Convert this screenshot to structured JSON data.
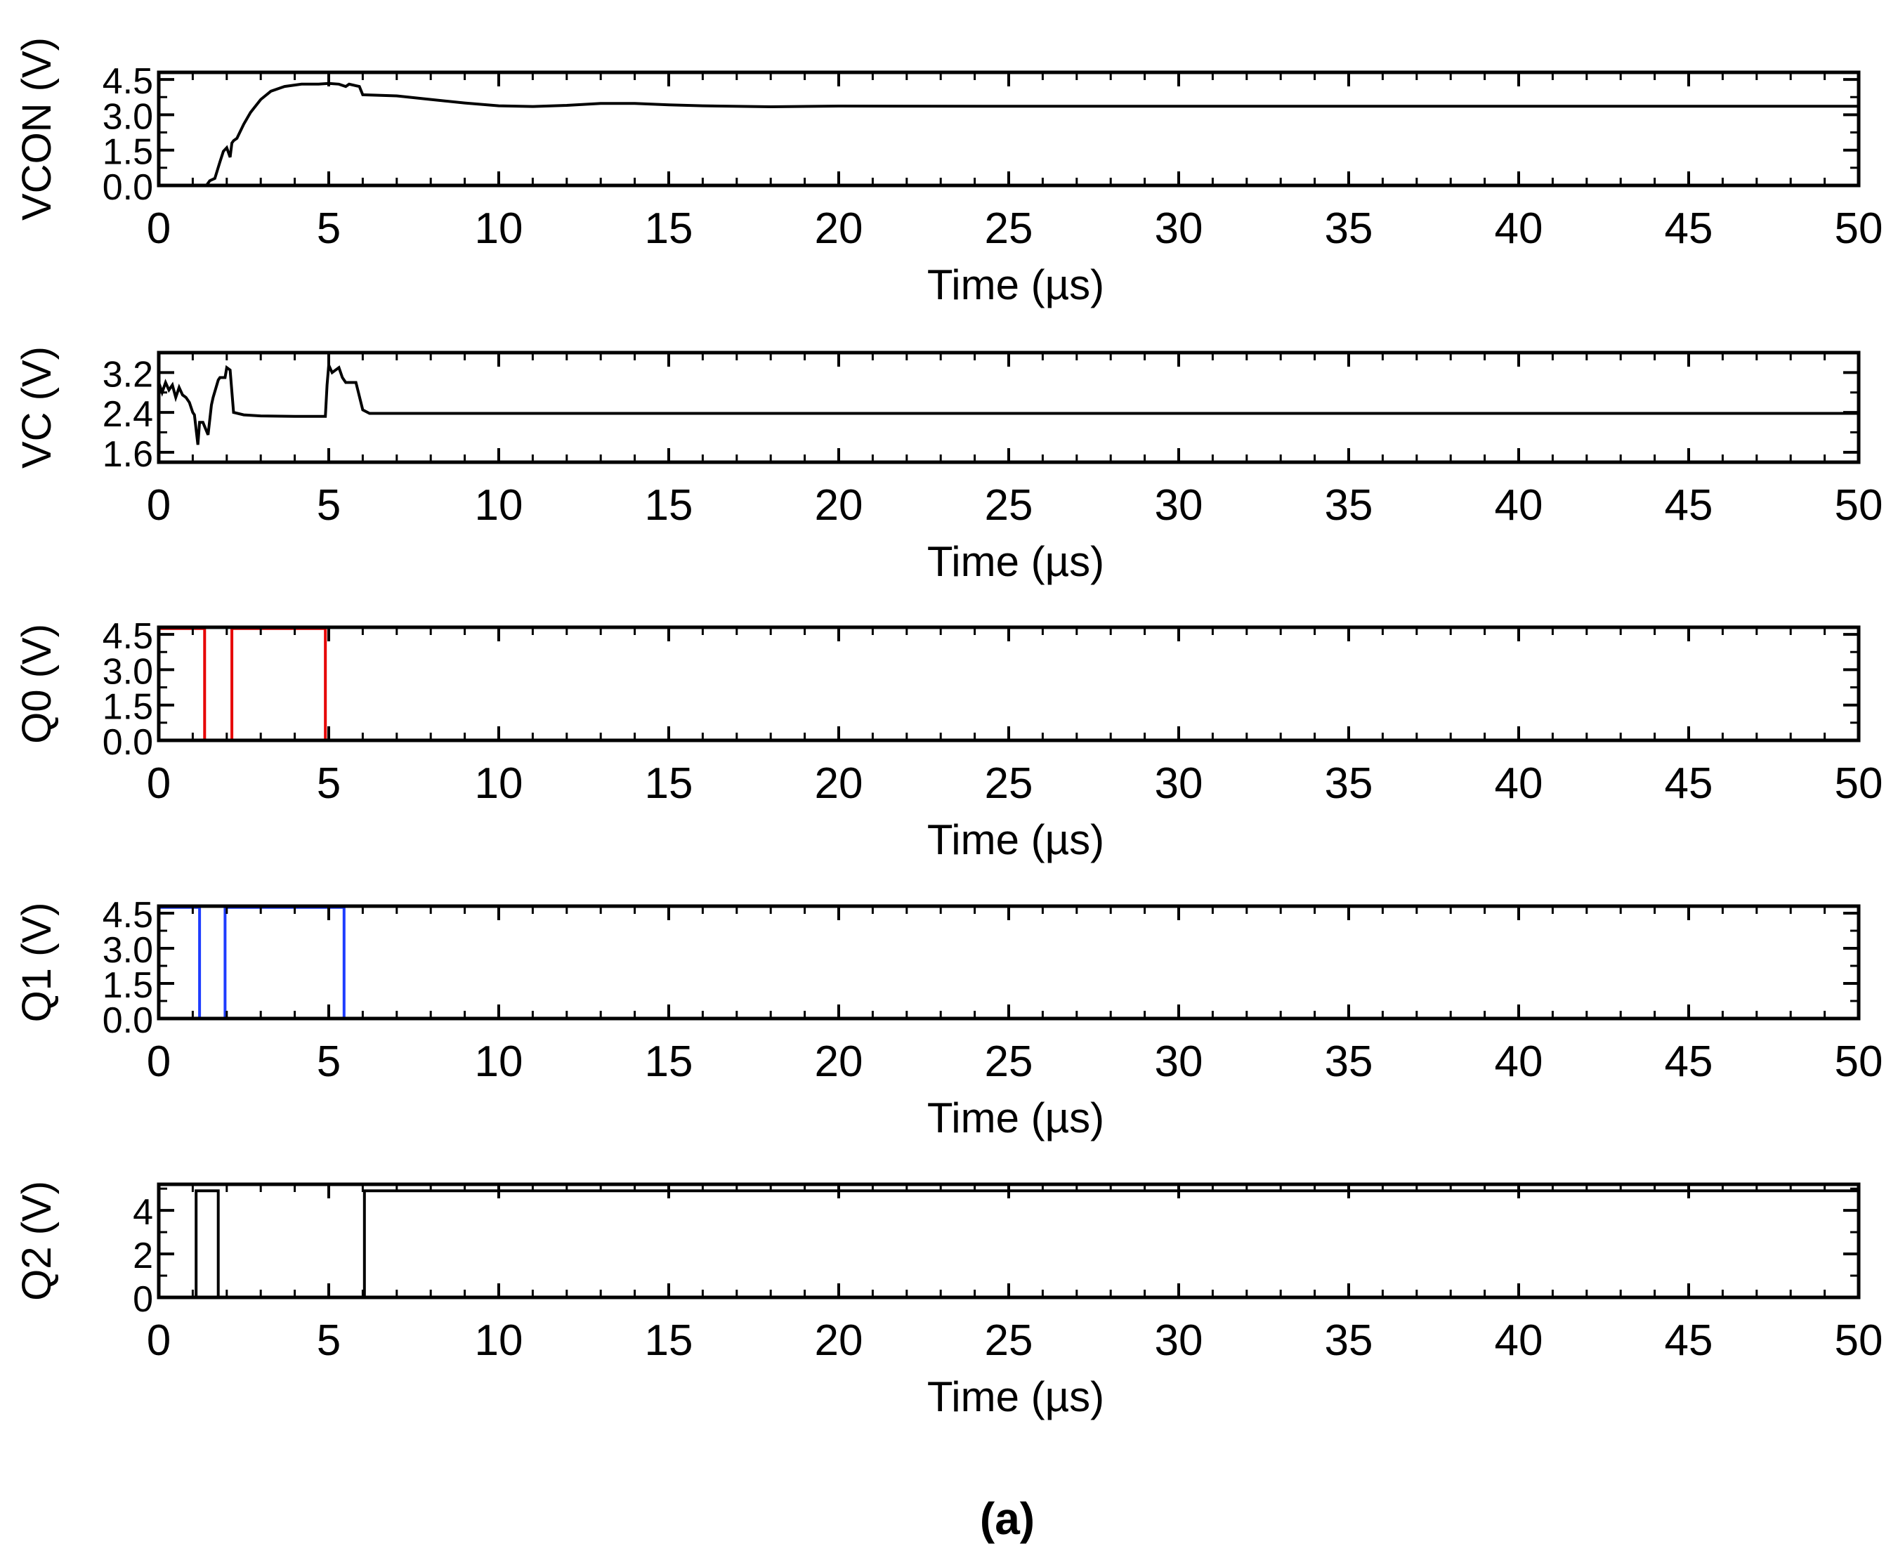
{
  "caption": "(a)",
  "chart_data": [
    {
      "type": "line",
      "ylabel": "VCON (V)",
      "xlabel": "Time (µs)",
      "xlim": [
        0,
        50
      ],
      "ylim": [
        0,
        4.8
      ],
      "x_ticks": [
        0,
        5,
        10,
        15,
        20,
        25,
        30,
        35,
        40,
        45,
        50
      ],
      "y_ticks": [
        "0.0",
        "1.5",
        "3.0",
        "4.5"
      ],
      "y_tick_values": [
        0,
        1.5,
        3.0,
        4.5
      ],
      "grid": false,
      "color": "#000000",
      "series": [
        {
          "x": [
            0,
            1.4,
            1.5,
            1.65,
            1.8,
            1.9,
            2.0,
            2.1,
            2.15,
            2.2,
            2.3,
            2.5,
            2.7,
            3.0,
            3.3,
            3.7,
            4.2,
            4.7,
            5.0,
            5.3,
            5.5,
            5.6,
            5.9,
            6.0,
            7,
            8,
            9,
            10,
            11,
            12,
            13,
            14,
            15,
            16,
            18,
            20,
            25,
            30,
            40,
            50
          ],
          "y": [
            0,
            0,
            0.2,
            0.3,
            1.0,
            1.45,
            1.6,
            1.2,
            1.8,
            1.9,
            2.0,
            2.6,
            3.1,
            3.65,
            4.0,
            4.2,
            4.3,
            4.3,
            4.33,
            4.3,
            4.2,
            4.3,
            4.2,
            3.85,
            3.8,
            3.65,
            3.5,
            3.38,
            3.35,
            3.4,
            3.48,
            3.48,
            3.42,
            3.38,
            3.34,
            3.37,
            3.36,
            3.36,
            3.36,
            3.36
          ]
        }
      ]
    },
    {
      "type": "line",
      "ylabel": "VC (V)",
      "xlabel": "Time (µs)",
      "xlim": [
        0,
        50
      ],
      "ylim": [
        1.4,
        3.6
      ],
      "x_ticks": [
        0,
        5,
        10,
        15,
        20,
        25,
        30,
        35,
        40,
        45,
        50
      ],
      "y_ticks": [
        "1.6",
        "2.4",
        "3.2"
      ],
      "y_tick_values": [
        1.6,
        2.4,
        3.2
      ],
      "grid": false,
      "color": "#000000",
      "series": [
        {
          "x": [
            0,
            0.1,
            0.2,
            0.3,
            0.4,
            0.5,
            0.6,
            0.7,
            0.8,
            0.9,
            1.0,
            1.05,
            1.15,
            1.2,
            1.3,
            1.45,
            1.55,
            1.6,
            1.75,
            1.8,
            1.95,
            2.0,
            2.1,
            2.2,
            2.5,
            3,
            4,
            4.9,
            4.95,
            5.0,
            5.1,
            5.3,
            5.4,
            5.5,
            5.7,
            5.8,
            6.0,
            6.2,
            10,
            20,
            50
          ],
          "y": [
            3.0,
            2.8,
            3.0,
            2.85,
            2.95,
            2.7,
            2.9,
            2.75,
            2.7,
            2.6,
            2.4,
            2.35,
            1.75,
            2.2,
            2.2,
            1.95,
            2.55,
            2.7,
            3.05,
            3.1,
            3.1,
            3.3,
            3.25,
            2.4,
            2.35,
            2.33,
            2.32,
            2.32,
            2.95,
            3.35,
            3.2,
            3.3,
            3.1,
            3.0,
            3.0,
            3.0,
            2.45,
            2.38,
            2.38,
            2.38,
            2.38
          ]
        }
      ]
    },
    {
      "type": "line",
      "ylabel": "Q0 (V)",
      "xlabel": "Time (µs)",
      "xlim": [
        0,
        50
      ],
      "ylim": [
        0,
        4.8
      ],
      "x_ticks": [
        0,
        5,
        10,
        15,
        20,
        25,
        30,
        35,
        40,
        45,
        50
      ],
      "y_ticks": [
        "0.0",
        "1.5",
        "3.0",
        "4.5"
      ],
      "y_tick_values": [
        0,
        1.5,
        3.0,
        4.5
      ],
      "grid": false,
      "color": "#e60000",
      "series": [
        {
          "x": [
            0,
            1.35,
            1.35,
            2.15,
            2.15,
            4.9,
            4.9,
            50
          ],
          "y": [
            4.75,
            4.75,
            0,
            0,
            4.75,
            4.75,
            0,
            0
          ]
        }
      ]
    },
    {
      "type": "line",
      "ylabel": "Q1 (V)",
      "xlabel": "Time (µs)",
      "xlim": [
        0,
        50
      ],
      "ylim": [
        0,
        4.8
      ],
      "x_ticks": [
        0,
        5,
        10,
        15,
        20,
        25,
        30,
        35,
        40,
        45,
        50
      ],
      "y_ticks": [
        "0.0",
        "1.5",
        "3.0",
        "4.5"
      ],
      "y_tick_values": [
        0,
        1.5,
        3.0,
        4.5
      ],
      "grid": false,
      "color": "#1e3cff",
      "series": [
        {
          "x": [
            0,
            1.2,
            1.2,
            1.95,
            1.95,
            5.45,
            5.45,
            50
          ],
          "y": [
            4.75,
            4.75,
            0,
            0,
            4.75,
            4.75,
            0,
            0
          ]
        }
      ]
    },
    {
      "type": "line",
      "ylabel": "Q2 (V)",
      "xlabel": "Time (µs)",
      "xlim": [
        0,
        50
      ],
      "ylim": [
        0,
        5.2
      ],
      "x_ticks": [
        0,
        5,
        10,
        15,
        20,
        25,
        30,
        35,
        40,
        45,
        50
      ],
      "y_ticks": [
        "0",
        "2",
        "4"
      ],
      "y_tick_values": [
        0,
        2,
        4
      ],
      "grid": false,
      "color": "#000000",
      "series": [
        {
          "x": [
            0,
            1.1,
            1.1,
            1.75,
            1.75,
            6.05,
            6.05,
            50
          ],
          "y": [
            0,
            0,
            4.9,
            4.9,
            0,
            0,
            4.9,
            4.9
          ]
        }
      ]
    }
  ]
}
